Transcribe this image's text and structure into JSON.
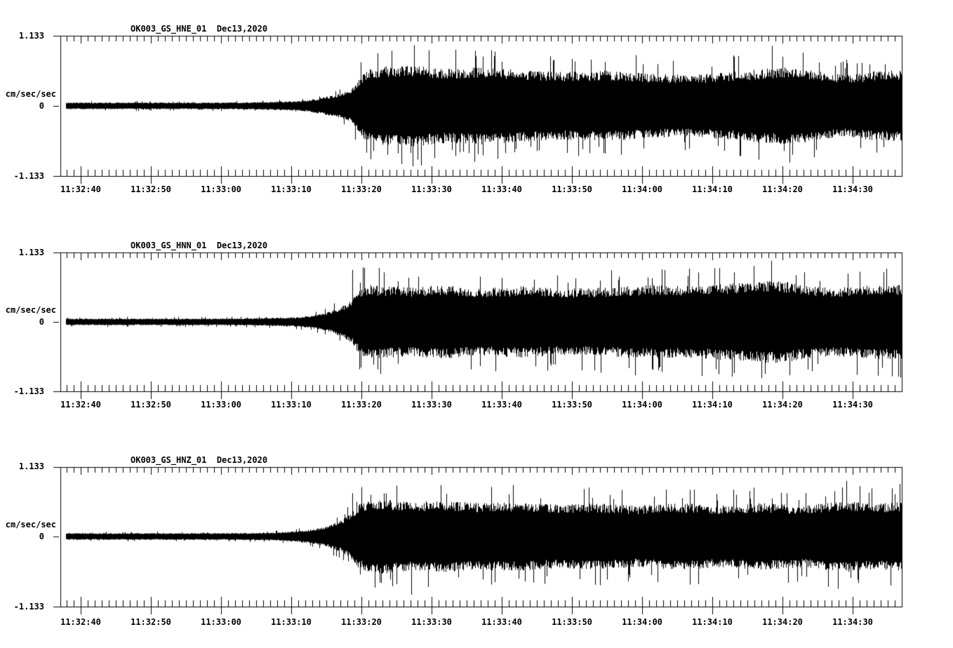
{
  "figure": {
    "background_color": "#ffffff",
    "trace_color": "#000000",
    "description": "Three-panel strong-motion seismogram (acceleration) record for station OK003, channels HNE/HNN/HNZ, Dec 13 2020"
  },
  "axes": {
    "y_unit_label": "cm/sec/sec",
    "y_max_label": "1.133",
    "y_zero_label": "0",
    "y_min_label": "-1.133",
    "x_tick_labels": [
      "11:32:40",
      "11:32:50",
      "11:33:00",
      "11:33:10",
      "11:33:20",
      "11:33:30",
      "11:33:40",
      "11:33:50",
      "11:34:00",
      "11:34:10",
      "11:34:20",
      "11:34:30"
    ]
  },
  "chart_data": [
    {
      "type": "line",
      "variant": "seismogram",
      "title": "OK003_GS_HNE_01  Dec13,2020",
      "station_channel": "OK003_GS_HNE_01",
      "date": "Dec13,2020",
      "ylabel": "cm/sec/sec",
      "ylim": [
        -1.133,
        1.133
      ],
      "y_tick_values": [
        1.133,
        0,
        -1.133
      ],
      "x_start": "11:32:37",
      "x_end": "11:34:37",
      "x_major_tick_interval_sec": 10,
      "x_minor_tick_interval_sec": 1,
      "x_tick_labels": [
        "11:32:40",
        "11:32:50",
        "11:33:00",
        "11:33:10",
        "11:33:20",
        "11:33:30",
        "11:33:40",
        "11:33:50",
        "11:34:00",
        "11:34:10",
        "11:34:20",
        "11:34:30"
      ],
      "envelope_cm_s2": [
        [
          0,
          0.055
        ],
        [
          20,
          0.055
        ],
        [
          28,
          0.06
        ],
        [
          31,
          0.07
        ],
        [
          34,
          0.08
        ],
        [
          36,
          0.11
        ],
        [
          38,
          0.15
        ],
        [
          40,
          0.2
        ],
        [
          41.5,
          0.28
        ],
        [
          42.5,
          0.45
        ],
        [
          43.5,
          0.58
        ],
        [
          46,
          0.64
        ],
        [
          50,
          0.66
        ],
        [
          55,
          0.6
        ],
        [
          60,
          0.63
        ],
        [
          66,
          0.58
        ],
        [
          72,
          0.55
        ],
        [
          78,
          0.57
        ],
        [
          84,
          0.52
        ],
        [
          90,
          0.5
        ],
        [
          95,
          0.54
        ],
        [
          100,
          0.6
        ],
        [
          104,
          0.63
        ],
        [
          108,
          0.56
        ],
        [
          112,
          0.5
        ],
        [
          116,
          0.56
        ],
        [
          120,
          0.58
        ]
      ],
      "peak_events_cm_s2": [
        [
          44.2,
          -0.86
        ],
        [
          48.6,
          -0.94
        ],
        [
          60.2,
          -0.8
        ],
        [
          82.0,
          0.82
        ],
        [
          101.4,
          0.97
        ],
        [
          105.8,
          0.86
        ]
      ]
    },
    {
      "type": "line",
      "variant": "seismogram",
      "title": "OK003_GS_HNN_01  Dec13,2020",
      "station_channel": "OK003_GS_HNN_01",
      "date": "Dec13,2020",
      "ylabel": "cm/sec/sec",
      "ylim": [
        -1.133,
        1.133
      ],
      "y_tick_values": [
        1.133,
        0,
        -1.133
      ],
      "x_start": "11:32:37",
      "x_end": "11:34:37",
      "x_major_tick_interval_sec": 10,
      "x_minor_tick_interval_sec": 1,
      "x_tick_labels": [
        "11:32:40",
        "11:32:50",
        "11:33:00",
        "11:33:10",
        "11:33:20",
        "11:33:30",
        "11:33:40",
        "11:33:50",
        "11:34:00",
        "11:34:10",
        "11:34:20",
        "11:34:30"
      ],
      "envelope_cm_s2": [
        [
          0,
          0.055
        ],
        [
          20,
          0.055
        ],
        [
          28,
          0.06
        ],
        [
          31,
          0.07
        ],
        [
          34,
          0.08
        ],
        [
          36,
          0.11
        ],
        [
          38,
          0.16
        ],
        [
          40,
          0.24
        ],
        [
          41.5,
          0.35
        ],
        [
          42.5,
          0.52
        ],
        [
          43.5,
          0.6
        ],
        [
          46,
          0.58
        ],
        [
          50,
          0.56
        ],
        [
          55,
          0.6
        ],
        [
          60,
          0.54
        ],
        [
          66,
          0.58
        ],
        [
          72,
          0.54
        ],
        [
          78,
          0.56
        ],
        [
          84,
          0.6
        ],
        [
          90,
          0.58
        ],
        [
          95,
          0.62
        ],
        [
          99,
          0.66
        ],
        [
          102,
          0.68
        ],
        [
          106,
          0.6
        ],
        [
          110,
          0.55
        ],
        [
          115,
          0.6
        ],
        [
          120,
          0.6
        ]
      ],
      "peak_events_cm_s2": [
        [
          41.6,
          0.84
        ],
        [
          43.1,
          0.88
        ],
        [
          45.6,
          -0.84
        ],
        [
          96.0,
          0.8
        ],
        [
          101.3,
          0.99
        ],
        [
          112.2,
          0.78
        ]
      ]
    },
    {
      "type": "line",
      "variant": "seismogram",
      "title": "OK003_GS_HNZ_01  Dec13,2020",
      "station_channel": "OK003_GS_HNZ_01",
      "date": "Dec13,2020",
      "ylabel": "cm/sec/sec",
      "ylim": [
        -1.133,
        1.133
      ],
      "y_tick_values": [
        1.133,
        0,
        -1.133
      ],
      "x_start": "11:32:37",
      "x_end": "11:34:37",
      "x_major_tick_interval_sec": 10,
      "x_minor_tick_interval_sec": 1,
      "x_tick_labels": [
        "11:32:40",
        "11:32:50",
        "11:33:00",
        "11:33:10",
        "11:33:20",
        "11:33:30",
        "11:33:40",
        "11:33:50",
        "11:34:00",
        "11:34:10",
        "11:34:20",
        "11:34:30"
      ],
      "envelope_cm_s2": [
        [
          0,
          0.055
        ],
        [
          20,
          0.055
        ],
        [
          28,
          0.06
        ],
        [
          31,
          0.07
        ],
        [
          34,
          0.09
        ],
        [
          36,
          0.12
        ],
        [
          38,
          0.17
        ],
        [
          40,
          0.26
        ],
        [
          41.5,
          0.38
        ],
        [
          42.5,
          0.52
        ],
        [
          43.5,
          0.58
        ],
        [
          46,
          0.6
        ],
        [
          50,
          0.56
        ],
        [
          55,
          0.58
        ],
        [
          60,
          0.54
        ],
        [
          65,
          0.56
        ],
        [
          70,
          0.52
        ],
        [
          76,
          0.54
        ],
        [
          82,
          0.5
        ],
        [
          88,
          0.54
        ],
        [
          94,
          0.5
        ],
        [
          100,
          0.54
        ],
        [
          106,
          0.5
        ],
        [
          112,
          0.58
        ],
        [
          116,
          0.53
        ],
        [
          120,
          0.56
        ]
      ],
      "peak_events_cm_s2": [
        [
          41.6,
          0.7
        ],
        [
          50.0,
          -0.94
        ],
        [
          76.2,
          -0.78
        ],
        [
          112.0,
          0.9
        ],
        [
          119.6,
          0.85
        ]
      ]
    }
  ]
}
